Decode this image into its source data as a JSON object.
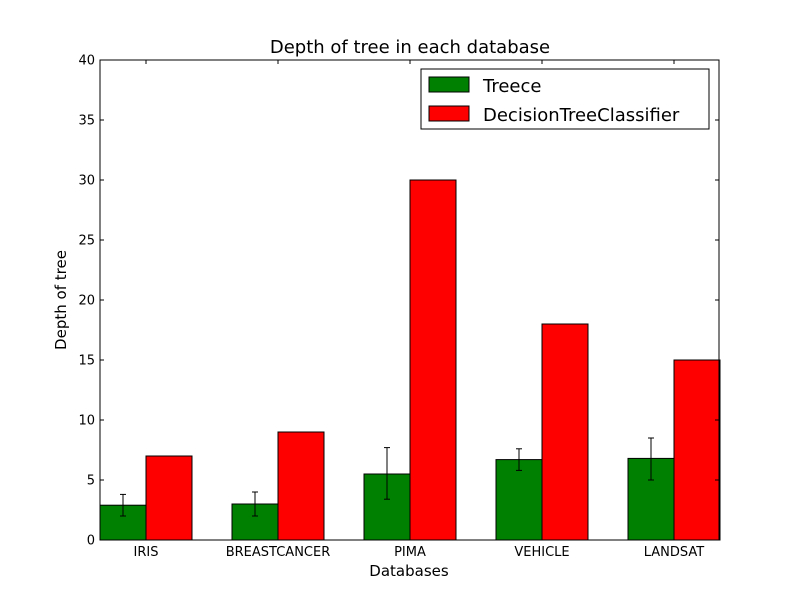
{
  "chart_data": {
    "type": "bar",
    "title": "Depth of tree in each database",
    "xlabel": "Databases",
    "ylabel": "Depth of tree",
    "ylim": [
      0,
      40
    ],
    "yticks": [
      0,
      5,
      10,
      15,
      20,
      25,
      30,
      35,
      40
    ],
    "categories": [
      "IRIS",
      "BREASTCANCER",
      "PIMA",
      "VEHICLE",
      "LANDSAT"
    ],
    "series": [
      {
        "name": "Treece",
        "color": "#008000",
        "values": [
          2.9,
          3.0,
          5.5,
          6.7,
          6.8
        ],
        "error": [
          [
            2.0,
            3.8
          ],
          [
            2.0,
            4.0
          ],
          [
            3.4,
            7.7
          ],
          [
            5.8,
            7.6
          ],
          [
            5.0,
            8.5
          ]
        ]
      },
      {
        "name": "DecisionTreeClassifier",
        "color": "#ff0000",
        "values": [
          7,
          9,
          30,
          18,
          15
        ]
      }
    ],
    "grid": false,
    "legend_position": "top-right"
  }
}
